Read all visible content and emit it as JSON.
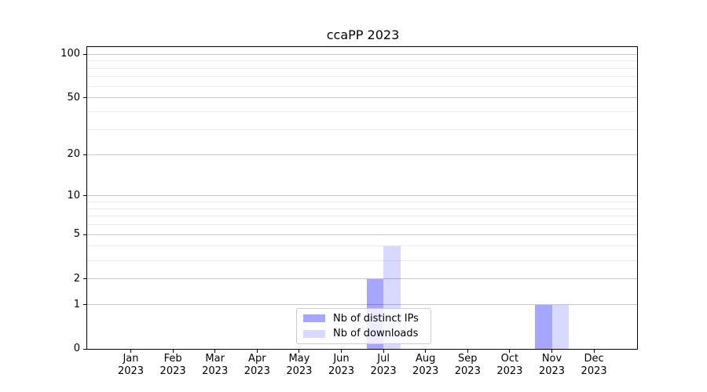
{
  "chart_data": {
    "type": "bar",
    "title": "ccaPP 2023",
    "categories": [
      {
        "month": "Jan",
        "year": "2023"
      },
      {
        "month": "Feb",
        "year": "2023"
      },
      {
        "month": "Mar",
        "year": "2023"
      },
      {
        "month": "Apr",
        "year": "2023"
      },
      {
        "month": "May",
        "year": "2023"
      },
      {
        "month": "Jun",
        "year": "2023"
      },
      {
        "month": "Jul",
        "year": "2023"
      },
      {
        "month": "Aug",
        "year": "2023"
      },
      {
        "month": "Sep",
        "year": "2023"
      },
      {
        "month": "Oct",
        "year": "2023"
      },
      {
        "month": "Nov",
        "year": "2023"
      },
      {
        "month": "Dec",
        "year": "2023"
      }
    ],
    "series": [
      {
        "name": "Nb of distinct IPs",
        "color": "rgba(0,0,255,0.35)",
        "values": [
          0,
          0,
          0,
          0,
          0,
          0,
          2,
          0,
          0,
          0,
          1,
          0
        ]
      },
      {
        "name": "Nb of downloads",
        "color": "rgba(0,0,255,0.15)",
        "values": [
          0,
          0,
          0,
          0,
          0,
          0,
          4,
          0,
          0,
          0,
          1,
          0
        ]
      }
    ],
    "yscale": "log1p",
    "ylim": [
      0,
      112
    ],
    "yticks": [
      0,
      1,
      2,
      5,
      10,
      20,
      50,
      100
    ],
    "yticks_minor": [
      3,
      4,
      6,
      7,
      8,
      9,
      30,
      40,
      60,
      70,
      80,
      90
    ],
    "grid": {
      "orientation": "horizontal",
      "major_color": "#c6c6c6",
      "minor_color": "#ebebeb"
    },
    "axis_color": "#000000",
    "legend": {
      "position": "lower center",
      "border_color": "#cccccc"
    }
  }
}
